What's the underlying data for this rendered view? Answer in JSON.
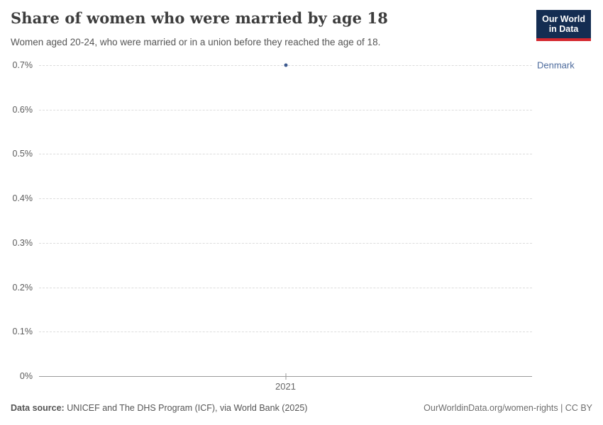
{
  "header": {
    "title": "Share of women who were married by age 18",
    "subtitle": "Women aged 20-24, who were married or in a union before they reached the age of 18.",
    "logo": {
      "line1": "Our World",
      "line2": "in Data"
    }
  },
  "chart_data": {
    "type": "scatter",
    "title": "Share of women who were married by age 18",
    "x": [
      2021
    ],
    "x_tick_labels": [
      "2021"
    ],
    "series": [
      {
        "name": "Denmark",
        "values": [
          0.7
        ]
      }
    ],
    "unit": "%",
    "ylim": [
      0,
      0.7
    ],
    "y_ticks": [
      {
        "value": 0,
        "label": "0%"
      },
      {
        "value": 0.1,
        "label": "0.1%"
      },
      {
        "value": 0.2,
        "label": "0.2%"
      },
      {
        "value": 0.3,
        "label": "0.3%"
      },
      {
        "value": 0.4,
        "label": "0.4%"
      },
      {
        "value": 0.5,
        "label": "0.5%"
      },
      {
        "value": 0.6,
        "label": "0.6%"
      },
      {
        "value": 0.7,
        "label": "0.7%"
      }
    ],
    "grid": true,
    "legend_position": "right-of-point"
  },
  "colors": {
    "point": "#3d5a8f",
    "series_label": "#4c6a9c",
    "logo_bg": "#142d52",
    "logo_stripe": "#d4272e"
  },
  "footer": {
    "source_label": "Data source:",
    "source_text": " UNICEF and The DHS Program (ICF), via World Bank (2025)",
    "attribution": "OurWorldinData.org/women-rights | CC BY"
  }
}
